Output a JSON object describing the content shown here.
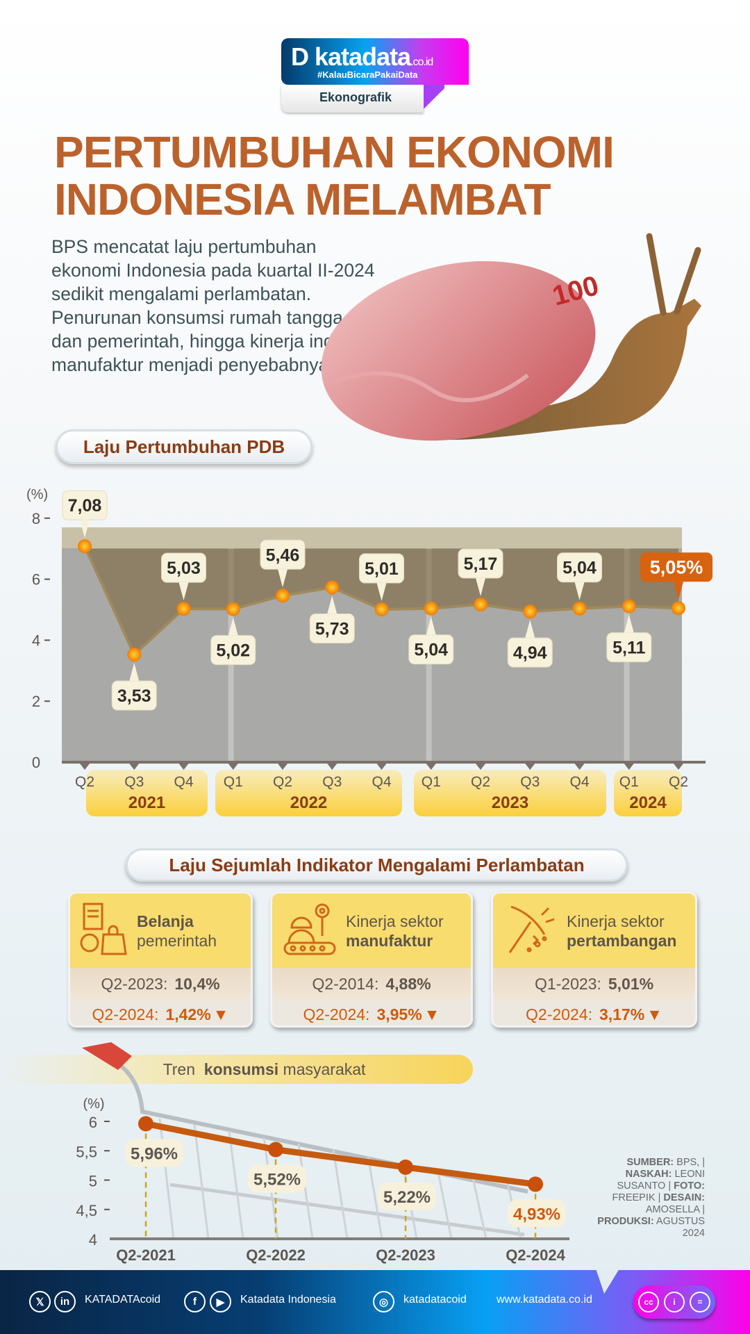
{
  "logo": {
    "brand": "katadata",
    "domain": ".co.id",
    "tagline": "#KalauBicaraPakaiData",
    "section": "Ekonografik"
  },
  "title": {
    "line1": "PERTUMBUHAN EKONOMI",
    "line2": "INDONESIA MELAMBAT"
  },
  "intro": [
    "BPS mencatat laju pertumbuhan",
    "ekonomi Indonesia pada kuartal II-2024",
    "sedikit mengalami perlambatan.",
    "Penurunan konsumsi rumah tangga",
    "dan pemerintah, hingga kinerja industri",
    "manufaktur menjadi penyebabnya."
  ],
  "colors": {
    "title": "#bb622c",
    "heading": "#8a3c14",
    "accent": "#e06a10",
    "yellow": "#f8dc6e",
    "label_bg": "#f7f2dc"
  },
  "chart_data": [
    {
      "type": "line",
      "title": "Laju Pertumbuhan PDB",
      "ylabel": "(%)",
      "ylim": [
        0,
        8
      ],
      "yticks": [
        "0",
        "2",
        "4",
        "6",
        "8"
      ],
      "categories": [
        "Q2",
        "Q3",
        "Q4",
        "Q1",
        "Q2",
        "Q3",
        "Q4",
        "Q1",
        "Q2",
        "Q3",
        "Q4",
        "Q1",
        "Q2"
      ],
      "years": [
        {
          "label": "2021",
          "span": 3
        },
        {
          "label": "2022",
          "span": 4
        },
        {
          "label": "2023",
          "span": 4
        },
        {
          "label": "2024",
          "span": 2
        }
      ],
      "values": [
        7.08,
        3.53,
        5.03,
        5.02,
        5.46,
        5.73,
        5.01,
        5.04,
        5.17,
        4.94,
        5.04,
        5.11,
        5.05
      ],
      "data_labels": [
        "7,08",
        "3,53",
        "5,03",
        "5,02",
        "5,46",
        "5,73",
        "5,01",
        "5,04",
        "5,17",
        "4,94",
        "5,04",
        "5,11",
        "5,05%"
      ],
      "highlight": "last"
    },
    {
      "type": "line",
      "title": "Tren  konsumsi masyarakat",
      "title_bold_word": "konsumsi",
      "ylabel": "(%)",
      "ylim": [
        4,
        6
      ],
      "yticks": [
        "4",
        "4,5",
        "5",
        "5,5",
        "6"
      ],
      "categories": [
        "Q2-2021",
        "Q2-2022",
        "Q2-2023",
        "Q2-2024"
      ],
      "values": [
        5.96,
        5.52,
        5.22,
        4.93
      ],
      "data_labels": [
        "5,96%",
        "5,52%",
        "5,22%",
        "4,93%"
      ],
      "color": "#c65a10"
    }
  ],
  "indicators": {
    "title": "Laju Sejumlah Indikator Mengalami Perlambatan",
    "cards": [
      {
        "icon": "government-spending-icon",
        "line1": "Belanja",
        "line2": "pemerintah",
        "bold_line": 1,
        "prev_period": "Q2-2023:",
        "prev_value": "10,4%",
        "cur_period": "Q2-2024:",
        "cur_value": "1,42%"
      },
      {
        "icon": "factory-worker-icon",
        "line1": "Kinerja sektor",
        "line2": "manufaktur",
        "bold_line": 2,
        "prev_period": "Q2-2014:",
        "prev_value": "4,88%",
        "cur_period": "Q2-2024:",
        "cur_value": "3,95%"
      },
      {
        "icon": "pickaxe-icon",
        "line1": "Kinerja sektor",
        "line2": "pertambangan",
        "bold_line": 2,
        "prev_period": "Q1-2023:",
        "prev_value": "5,01%",
        "cur_period": "Q2-2024:",
        "cur_value": "3,17%"
      }
    ],
    "down_arrow": "▼"
  },
  "credits": {
    "sumber_label": "SUMBER:",
    "sumber": "BPS, |",
    "naskah_label": "NASKAH:",
    "naskah": "LEONI SUSANTO |",
    "foto_label": "FOTO:",
    "foto": "FREEPIK |",
    "desain_label": "DESAIN:",
    "desain": "AMOSELLA |",
    "produksi_label": "PRODUKSI:",
    "produksi": "AGUSTUS 2024"
  },
  "footer": {
    "x_linkedin": "KATADATAcoid",
    "facebook_youtube": "Katadata Indonesia",
    "instagram": "katadatacoid",
    "website": "www.katadata.co.id",
    "license_icons": [
      "cc-icon",
      "by-icon",
      "nd-icon"
    ]
  }
}
